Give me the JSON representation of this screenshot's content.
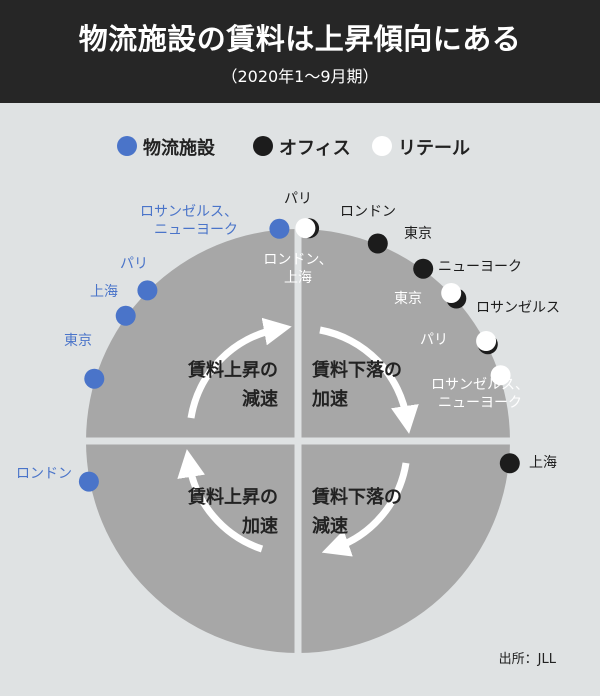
{
  "title": "物流施設の賃料は上昇傾向にある",
  "subtitle": "（2020年1〜9月期）",
  "legend": [
    {
      "label": "物流施設",
      "color": "#4a74c9"
    },
    {
      "label": "オフィス",
      "color": "#1c1c1c"
    },
    {
      "label": "リテール",
      "color": "#ffffff"
    }
  ],
  "source": "出所：JLL",
  "chart_data": {
    "type": "scatter",
    "quadrants": [
      {
        "label_line1": "賃料上昇の",
        "label_line2": "減速"
      },
      {
        "label_line1": "賃料下落の",
        "label_line2": "加速"
      },
      {
        "label_line1": "賃料上昇の",
        "label_line2": "加速"
      },
      {
        "label_line1": "賃料下落の",
        "label_line2": "減速"
      }
    ],
    "series": [
      {
        "name": "物流施設",
        "color": "#4a74c9",
        "text_color": "#4a74c9",
        "points": [
          {
            "label_lines": [
              "ロサンゼルス、",
              "ニューヨーク"
            ],
            "angle": 95
          },
          {
            "label_lines": [
              "パリ"
            ],
            "angle": 135
          },
          {
            "label_lines": [
              "上海"
            ],
            "angle": 144
          },
          {
            "label_lines": [
              "東京"
            ],
            "angle": 163
          },
          {
            "label_lines": [
              "ロンドン"
            ],
            "angle": 191
          }
        ]
      },
      {
        "name": "オフィス",
        "color": "#1c1c1c",
        "text_color": "#1c1c1c",
        "points": [
          {
            "label_lines": [
              "パリ"
            ],
            "angle": 87
          },
          {
            "label_lines": [
              "ロンドン"
            ],
            "angle": 68
          },
          {
            "label_lines": [
              "東京"
            ],
            "angle": 54
          },
          {
            "label_lines": [
              "ニューヨーク"
            ],
            "angle": 42
          },
          {
            "label_lines": [
              "ロサンゼルス"
            ],
            "angle": 27
          },
          {
            "label_lines": [
              "上海"
            ],
            "angle": -6
          }
        ]
      },
      {
        "name": "リテール",
        "color": "#ffffff",
        "text_color": "#ffffff",
        "points": [
          {
            "label_lines": [
              "ロンドン、",
              "上海"
            ],
            "angle": 88
          },
          {
            "label_lines": [
              "東京"
            ],
            "angle": 44
          },
          {
            "label_lines": [
              "パリ"
            ],
            "angle": 28
          },
          {
            "label_lines": [
              "ロサンゼルス、",
              "ニューヨーク"
            ],
            "angle": 18
          }
        ]
      }
    ]
  }
}
